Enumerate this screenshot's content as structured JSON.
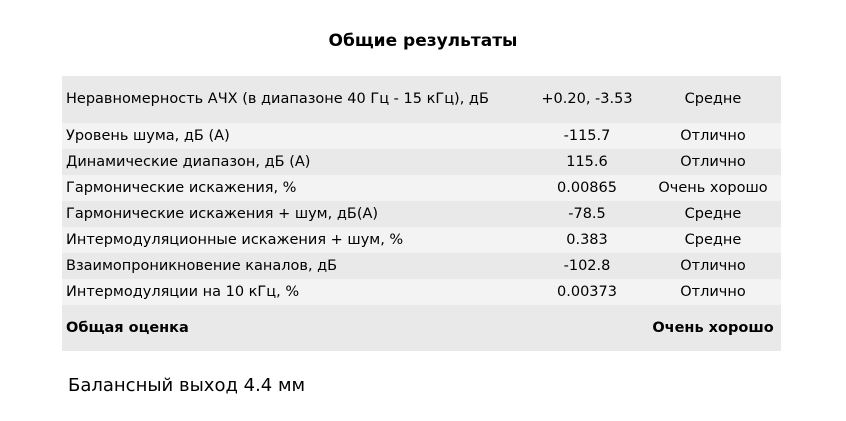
{
  "title": "Общие результаты",
  "rows": [
    {
      "label": "Неравномерность АЧХ (в диапазоне 40 Гц - 15 кГц), дБ",
      "value": "+0.20, -3.53",
      "rating": "Средне"
    },
    {
      "label": "Уровень шума, дБ (А)",
      "value": "-115.7",
      "rating": "Отлично"
    },
    {
      "label": "Динамические диапазон, дБ (А)",
      "value": "115.6",
      "rating": "Отлично"
    },
    {
      "label": "Гармонические искажения, %",
      "value": "0.00865",
      "rating": "Очень хорошо"
    },
    {
      "label": "Гармонические искажения + шум, дБ(А)",
      "value": "-78.5",
      "rating": "Средне"
    },
    {
      "label": "Интермодуляционные искажения + шум, %",
      "value": "0.383",
      "rating": "Средне"
    },
    {
      "label": "Взаимопроникновение каналов, дБ",
      "value": "-102.8",
      "rating": "Отлично"
    },
    {
      "label": "Интермодуляции на 10 кГц, %",
      "value": "0.00373",
      "rating": "Отлично"
    }
  ],
  "total": {
    "label": "Общая оценка",
    "value": "",
    "rating": "Очень хорошо"
  },
  "footer": "Балансный выход 4.4 мм"
}
